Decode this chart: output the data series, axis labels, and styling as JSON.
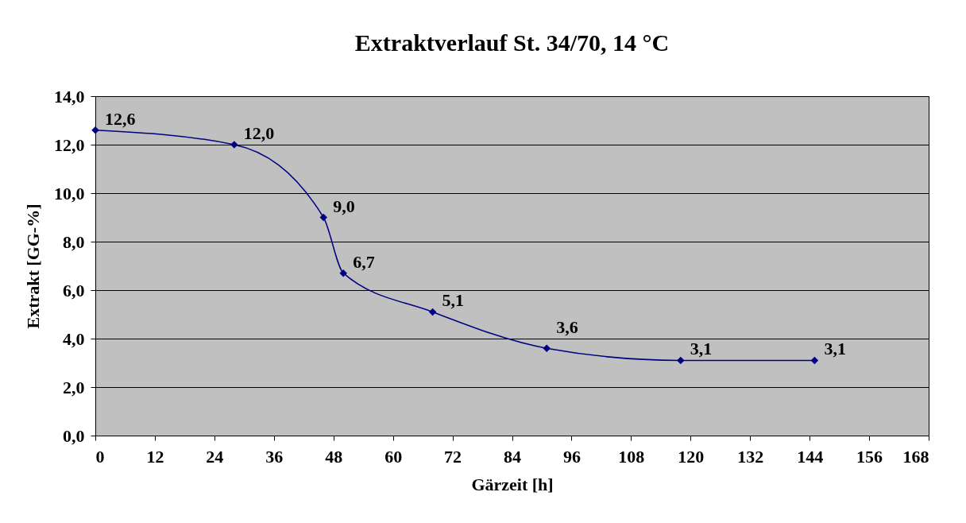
{
  "chart_data": {
    "type": "line",
    "title": "Extraktverlauf St. 34/70, 14 °C",
    "xlabel": "Gärzeit [h]",
    "ylabel": "Extrakt [GG-%]",
    "x": [
      0,
      28,
      46,
      50,
      68,
      91,
      118,
      145
    ],
    "series": [
      {
        "color": "#000080",
        "values": [
          12.6,
          12.0,
          9.0,
          6.7,
          5.1,
          3.6,
          3.1,
          3.1
        ],
        "value_labels": [
          "12,6",
          "12,0",
          "9,0",
          "6,7",
          "5,1",
          "3,6",
          "3,1",
          "3,1"
        ]
      }
    ],
    "xlim": [
      0,
      168
    ],
    "xticks": [
      0,
      12,
      24,
      36,
      48,
      60,
      72,
      84,
      96,
      108,
      120,
      132,
      144,
      156,
      168
    ],
    "ylim": [
      0,
      14
    ],
    "yticks": [
      {
        "value": 0,
        "label": "0,0"
      },
      {
        "value": 2,
        "label": "2,0"
      },
      {
        "value": 4,
        "label": "4,0"
      },
      {
        "value": 6,
        "label": "6,0"
      },
      {
        "value": 8,
        "label": "8,0"
      },
      {
        "value": 10,
        "label": "10,0"
      },
      {
        "value": 12,
        "label": "12,0"
      },
      {
        "value": 14,
        "label": "14,0"
      }
    ],
    "grid": "y",
    "marker": "diamond",
    "line_style": "solid"
  }
}
